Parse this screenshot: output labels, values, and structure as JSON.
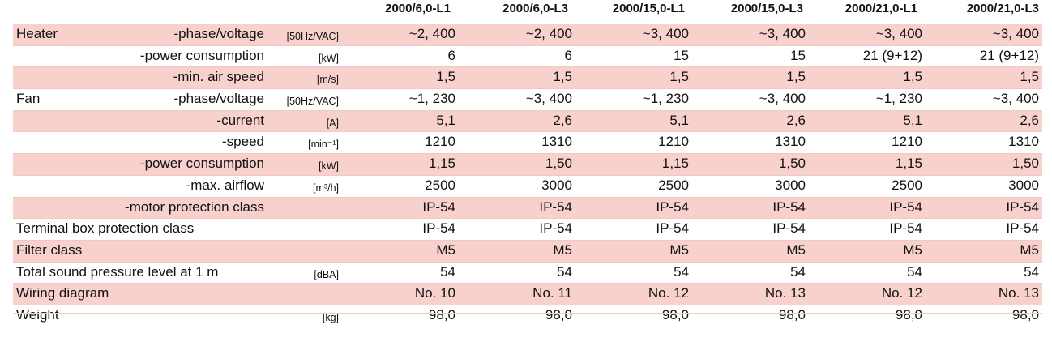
{
  "columns": [
    "2000/6,0-L1",
    "2000/6,0-L3",
    "2000/15,0-L1",
    "2000/15,0-L3",
    "2000/21,0-L1",
    "2000/21,0-L3"
  ],
  "rows": [
    {
      "group": "Heater",
      "param": "-phase/voltage",
      "unit": "[50Hz/VAC]",
      "values": [
        "~2, 400",
        "~2, 400",
        "~3, 400",
        "~3, 400",
        "~3, 400",
        "~3, 400"
      ],
      "shaded": true
    },
    {
      "group": "",
      "param": "-power consumption",
      "unit": "[kW]",
      "values": [
        "6",
        "6",
        "15",
        "15",
        "21 (9+12)",
        "21 (9+12)"
      ],
      "shaded": false
    },
    {
      "group": "",
      "param": "-min. air speed",
      "unit": "[m/s]",
      "values": [
        "1,5",
        "1,5",
        "1,5",
        "1,5",
        "1,5",
        "1,5"
      ],
      "shaded": true
    },
    {
      "group": "Fan",
      "param": "-phase/voltage",
      "unit": "[50Hz/VAC]",
      "values": [
        "~1, 230",
        "~3, 400",
        "~1, 230",
        "~3, 400",
        "~1, 230",
        "~3, 400"
      ],
      "shaded": false
    },
    {
      "group": "",
      "param": "-current",
      "unit": "[A]",
      "values": [
        "5,1",
        "2,6",
        "5,1",
        "2,6",
        "5,1",
        "2,6"
      ],
      "shaded": true
    },
    {
      "group": "",
      "param": "-speed",
      "unit": "[min⁻¹]",
      "values": [
        "1210",
        "1310",
        "1210",
        "1310",
        "1210",
        "1310"
      ],
      "shaded": false
    },
    {
      "group": "",
      "param": "-power consumption",
      "unit": "[kW]",
      "values": [
        "1,15",
        "1,50",
        "1,15",
        "1,50",
        "1,15",
        "1,50"
      ],
      "shaded": true
    },
    {
      "group": "",
      "param": "-max. airflow",
      "unit": "[m³/h]",
      "values": [
        "2500",
        "3000",
        "2500",
        "3000",
        "2500",
        "3000"
      ],
      "shaded": false
    },
    {
      "group": "",
      "param": "-motor protection class",
      "unit": "",
      "values": [
        "IP-54",
        "IP-54",
        "IP-54",
        "IP-54",
        "IP-54",
        "IP-54"
      ],
      "shaded": true
    },
    {
      "full": "Terminal box protection class",
      "unit": "",
      "values": [
        "IP-54",
        "IP-54",
        "IP-54",
        "IP-54",
        "IP-54",
        "IP-54"
      ],
      "shaded": false
    },
    {
      "full": "Filter class",
      "unit": "",
      "values": [
        "M5",
        "M5",
        "M5",
        "M5",
        "M5",
        "M5"
      ],
      "shaded": true
    },
    {
      "full": "Total sound pressure level at 1 m",
      "unit": "[dBA]",
      "values": [
        "54",
        "54",
        "54",
        "54",
        "54",
        "54"
      ],
      "shaded": false
    },
    {
      "full": "Wiring diagram",
      "unit": "",
      "values": [
        "No. 10",
        "No. 11",
        "No. 12",
        "No. 13",
        "No. 12",
        "No. 13"
      ],
      "shaded": true
    },
    {
      "full": "Weight",
      "unit": "[kg]",
      "values": [
        "98,0",
        "98,0",
        "98,0",
        "98,0",
        "98,0",
        "98,0"
      ],
      "shaded": false
    }
  ]
}
